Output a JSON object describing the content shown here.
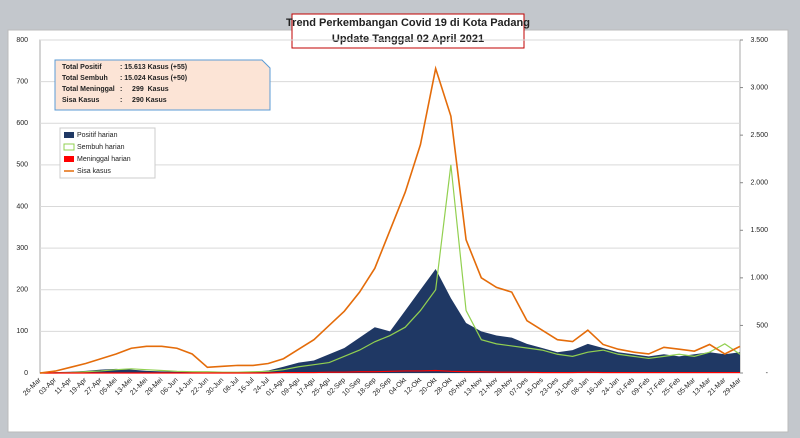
{
  "chart_data": {
    "type": "line",
    "title": [
      "Trend Perkembangan Covid 19 di Kota Padang",
      "Update Tanggal  02 April 2021"
    ],
    "summary": [
      {
        "label": "Total Positif",
        "value": ": 15.613 Kasus (+55)"
      },
      {
        "label": "Total Sembuh",
        "value": ": 15.024 Kasus (+50)"
      },
      {
        "label": "Total Meninggal",
        "value": ":     299  Kasus"
      },
      {
        "label": "Sisa Kasus",
        "value": ":     290 Kasus"
      }
    ],
    "categories": [
      "26-Mar",
      "03-Apr",
      "11-Apr",
      "19-Apr",
      "27-Apr",
      "05-Mei",
      "13-Mei",
      "21-Mei",
      "29-Mei",
      "06-Jun",
      "14-Jun",
      "22-Jun",
      "30-Jun",
      "08-Jul",
      "16-Jul",
      "24-Jul",
      "01-Agu",
      "09-Agu",
      "17-Agu",
      "25-Agu",
      "02-Sep",
      "10-Sep",
      "18-Sep",
      "26-Sep",
      "04-Okt",
      "12-Okt",
      "20-Okt",
      "28-Okt",
      "05-Nov",
      "13-Nov",
      "21-Nov",
      "29-Nov",
      "07-Des",
      "15-Des",
      "23-Des",
      "31-Des",
      "08-Jan",
      "16-Jan",
      "24-Jan",
      "01-Feb",
      "09-Feb",
      "17-Feb",
      "25-Feb",
      "05-Mar",
      "13-Mar",
      "21-Mar",
      "29-Mar"
    ],
    "series": [
      {
        "name": "Positif harian",
        "color": "#1f3864",
        "area": true,
        "values": [
          0,
          2,
          3,
          5,
          8,
          10,
          8,
          5,
          4,
          3,
          2,
          1,
          2,
          2,
          3,
          6,
          15,
          25,
          30,
          45,
          60,
          85,
          110,
          100,
          150,
          200,
          250,
          180,
          120,
          100,
          90,
          85,
          70,
          60,
          50,
          55,
          70,
          60,
          50,
          45,
          40,
          45,
          40,
          45,
          50,
          45,
          50
        ]
      },
      {
        "name": "Sembuh harian",
        "color": "#92d050",
        "values": [
          0,
          0,
          1,
          3,
          5,
          8,
          10,
          8,
          6,
          4,
          3,
          3,
          2,
          2,
          3,
          4,
          8,
          15,
          20,
          25,
          40,
          55,
          75,
          90,
          110,
          150,
          200,
          500,
          150,
          80,
          70,
          65,
          60,
          55,
          45,
          40,
          50,
          55,
          45,
          40,
          35,
          40,
          45,
          40,
          50,
          70,
          45
        ]
      },
      {
        "name": "Meninggal harian",
        "color": "#ff0000",
        "values": [
          0,
          0,
          0,
          0,
          0,
          0,
          0,
          0,
          0,
          0,
          0,
          0,
          0,
          0,
          0,
          0,
          1,
          1,
          1,
          2,
          2,
          3,
          3,
          4,
          5,
          5,
          6,
          4,
          3,
          3,
          2,
          2,
          2,
          1,
          1,
          1,
          2,
          1,
          1,
          1,
          1,
          1,
          1,
          1,
          1,
          1,
          1
        ]
      },
      {
        "name": "Sisa kasus",
        "color": "#e46c0a",
        "axis": "y2",
        "values": [
          0,
          20,
          60,
          100,
          150,
          200,
          260,
          280,
          280,
          260,
          200,
          60,
          70,
          80,
          80,
          100,
          150,
          250,
          350,
          500,
          650,
          850,
          1100,
          1500,
          1900,
          2400,
          3200,
          2700,
          1400,
          1000,
          900,
          850,
          550,
          450,
          350,
          330,
          450,
          300,
          250,
          220,
          200,
          270,
          250,
          230,
          300,
          200,
          280
        ]
      }
    ],
    "ylim": [
      0,
      800
    ],
    "yticks": [
      0,
      100,
      200,
      300,
      400,
      500,
      600,
      700,
      800
    ],
    "y2lim": [
      0,
      3500
    ],
    "y2ticks": [
      {
        "value": 0,
        "label": "-"
      },
      500,
      {
        "value": 1000,
        "label": "1.000"
      },
      {
        "value": 1500,
        "label": "1.500"
      },
      {
        "value": 2000,
        "label": "2.000"
      },
      {
        "value": 2500,
        "label": "2.500"
      },
      {
        "value": 3000,
        "label": "3.000"
      },
      {
        "value": 3500,
        "label": "3.500"
      }
    ],
    "grid": true
  }
}
